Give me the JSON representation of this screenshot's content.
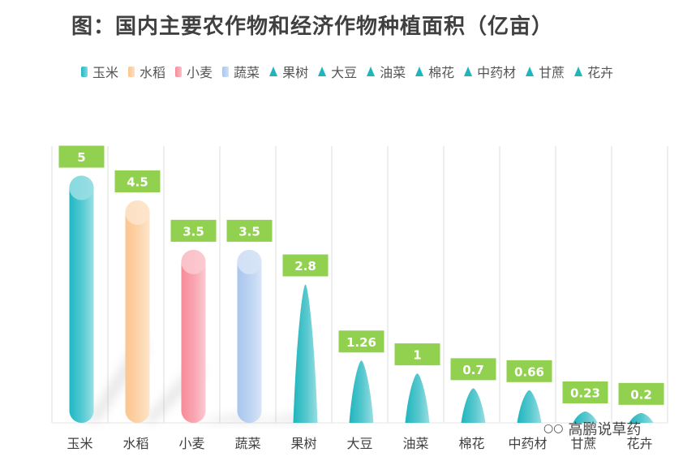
{
  "title": "图：国内主要农作物和经济作物种植面积（亿亩）",
  "watermark": "高鹏说草药",
  "icons": {
    "watermark": "wechat-icon"
  },
  "chart_data": {
    "type": "bar",
    "title": "图：国内主要农作物和经济作物种植面积（亿亩）",
    "categories": [
      "玉米",
      "水稻",
      "小麦",
      "蔬菜",
      "果树",
      "大豆",
      "油菜",
      "棉花",
      "中药材",
      "甘蔗",
      "花卉"
    ],
    "values": [
      5,
      4.5,
      3.5,
      3.5,
      2.8,
      1.26,
      1,
      0.7,
      0.66,
      0.23,
      0.2
    ],
    "value_labels": [
      "5",
      "4.5",
      "3.5",
      "3.5",
      "2.8",
      "1.26",
      "1",
      "0.7",
      "0.66",
      "0.23",
      "0.2"
    ],
    "styles": [
      "cylinder",
      "cylinder",
      "cylinder",
      "cylinder",
      "cone",
      "cone",
      "cone",
      "cone",
      "cone",
      "cone",
      "cone"
    ],
    "colors": [
      "#1fb8c3",
      "#fbc58e",
      "#f78a98",
      "#a8c6ee",
      "#1fb5be",
      "#1fb5be",
      "#1fb5be",
      "#1fb5be",
      "#1fb5be",
      "#1fb5be",
      "#1fb5be"
    ],
    "label_bg": "#92d050",
    "ylim": [
      0,
      5.6
    ],
    "grid": true,
    "legend_position": "top"
  }
}
